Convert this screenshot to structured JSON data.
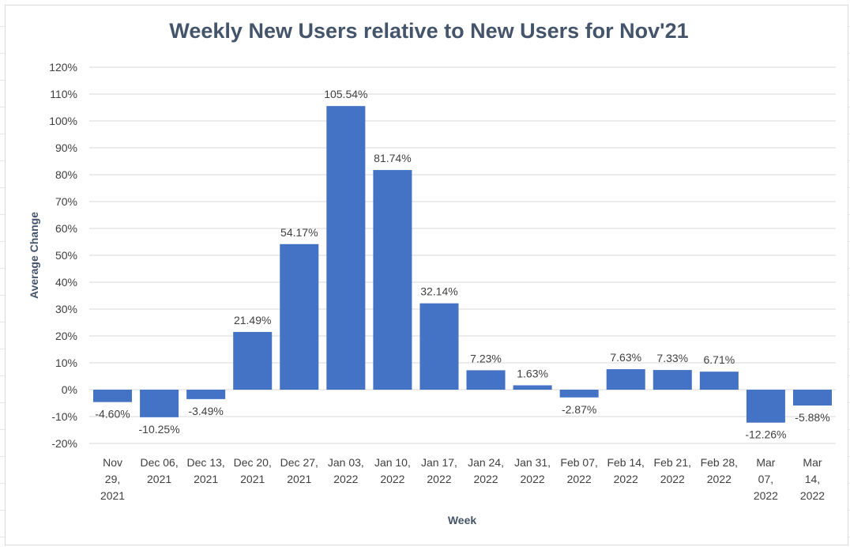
{
  "chart_data": {
    "type": "bar",
    "title": "Weekly New Users relative to New Users for Nov'21",
    "xlabel": "Week",
    "ylabel": "Average Change",
    "ylim": [
      -20,
      120
    ],
    "ytick_step": 10,
    "yticks": [
      "-20%",
      "-10%",
      "0%",
      "10%",
      "20%",
      "30%",
      "40%",
      "50%",
      "60%",
      "70%",
      "80%",
      "90%",
      "100%",
      "110%",
      "120%"
    ],
    "grid": true,
    "bar_color": "#4472c4",
    "categories": [
      [
        "Nov",
        "29,",
        "2021"
      ],
      [
        "Dec 06,",
        "2021"
      ],
      [
        "Dec 13,",
        "2021"
      ],
      [
        "Dec 20,",
        "2021"
      ],
      [
        "Dec 27,",
        "2021"
      ],
      [
        "Jan 03,",
        "2022"
      ],
      [
        "Jan 10,",
        "2022"
      ],
      [
        "Jan 17,",
        "2022"
      ],
      [
        "Jan 24,",
        "2022"
      ],
      [
        "Jan 31,",
        "2022"
      ],
      [
        "Feb 07,",
        "2022"
      ],
      [
        "Feb 14,",
        "2022"
      ],
      [
        "Feb 21,",
        "2022"
      ],
      [
        "Feb 28,",
        "2022"
      ],
      [
        "Mar",
        "07,",
        "2022"
      ],
      [
        "Mar",
        "14,",
        "2022"
      ]
    ],
    "values": [
      -4.6,
      -10.25,
      -3.49,
      21.49,
      54.17,
      105.54,
      81.74,
      32.14,
      7.23,
      1.63,
      -2.87,
      7.63,
      7.33,
      6.71,
      -12.26,
      -5.88
    ],
    "labels": [
      "-4.60%",
      "-10.25%",
      "-3.49%",
      "21.49%",
      "54.17%",
      "105.54%",
      "81.74%",
      "32.14%",
      "7.23%",
      "1.63%",
      "-2.87%",
      "7.63%",
      "7.33%",
      "6.71%",
      "-12.26%",
      "-5.88%"
    ]
  }
}
